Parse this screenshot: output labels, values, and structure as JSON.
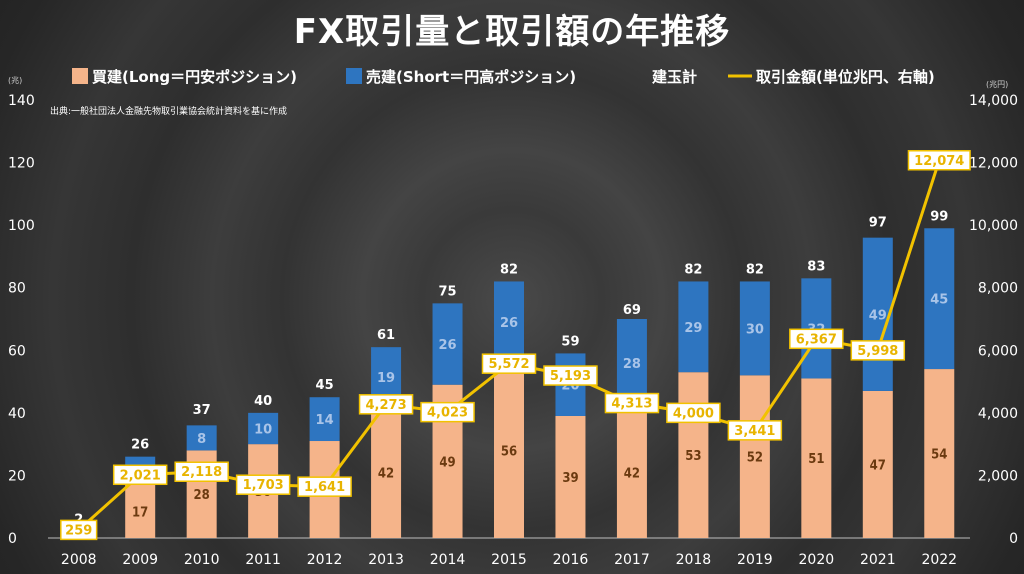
{
  "chart_data": {
    "type": "bar",
    "stacked": true,
    "title": "FX取引量と取引額の年推移",
    "source": "出典:一般社団法人金融先物取引業協会統計資料を基に作成",
    "categories": [
      "2008",
      "2009",
      "2010",
      "2011",
      "2012",
      "2013",
      "2014",
      "2015",
      "2016",
      "2017",
      "2018",
      "2019",
      "2020",
      "2021",
      "2022"
    ],
    "series": [
      {
        "name": "買建(Long＝円安ポジション)",
        "color": "#f5b48a",
        "axis": "left",
        "values": [
          null,
          17,
          28,
          30,
          31,
          42,
          49,
          56,
          39,
          42,
          53,
          52,
          51,
          47,
          54
        ]
      },
      {
        "name": "売建(Short＝円高ポジション)",
        "color": "#2e75c0",
        "axis": "left",
        "values": [
          null,
          9,
          8,
          10,
          14,
          19,
          26,
          26,
          20,
          28,
          29,
          30,
          32,
          49,
          45
        ]
      },
      {
        "name": "取引金額(単位兆円、右軸)",
        "type": "line",
        "color": "#f2c200",
        "axis": "right",
        "values": [
          259,
          2021,
          2118,
          1703,
          1641,
          4273,
          4023,
          5572,
          5193,
          4313,
          4000,
          3441,
          6367,
          5998,
          12074
        ]
      }
    ],
    "totals": {
      "name": "建玉計",
      "values": [
        2,
        26,
        37,
        40,
        45,
        61,
        75,
        82,
        59,
        69,
        82,
        82,
        83,
        97,
        99
      ]
    },
    "value_labels": {
      "right": [
        "259",
        "2,021",
        "2,118",
        "1,703",
        "1,641",
        "4,273",
        "4,023",
        "5,572",
        "5,193",
        "4,313",
        "4,000",
        "3,441",
        "6,367",
        "5,998",
        "12,074"
      ]
    },
    "y_left": {
      "unit": "(兆)",
      "ticks": [
        0,
        20,
        40,
        60,
        80,
        100,
        120,
        140
      ],
      "ylim": [
        0,
        140
      ]
    },
    "y_right": {
      "unit": "(兆円)",
      "ticks": [
        "0",
        "2,000",
        "4,000",
        "6,000",
        "8,000",
        "10,000",
        "12,000",
        "14,000"
      ],
      "ylim": [
        0,
        14000
      ]
    },
    "legend_position": "top"
  }
}
